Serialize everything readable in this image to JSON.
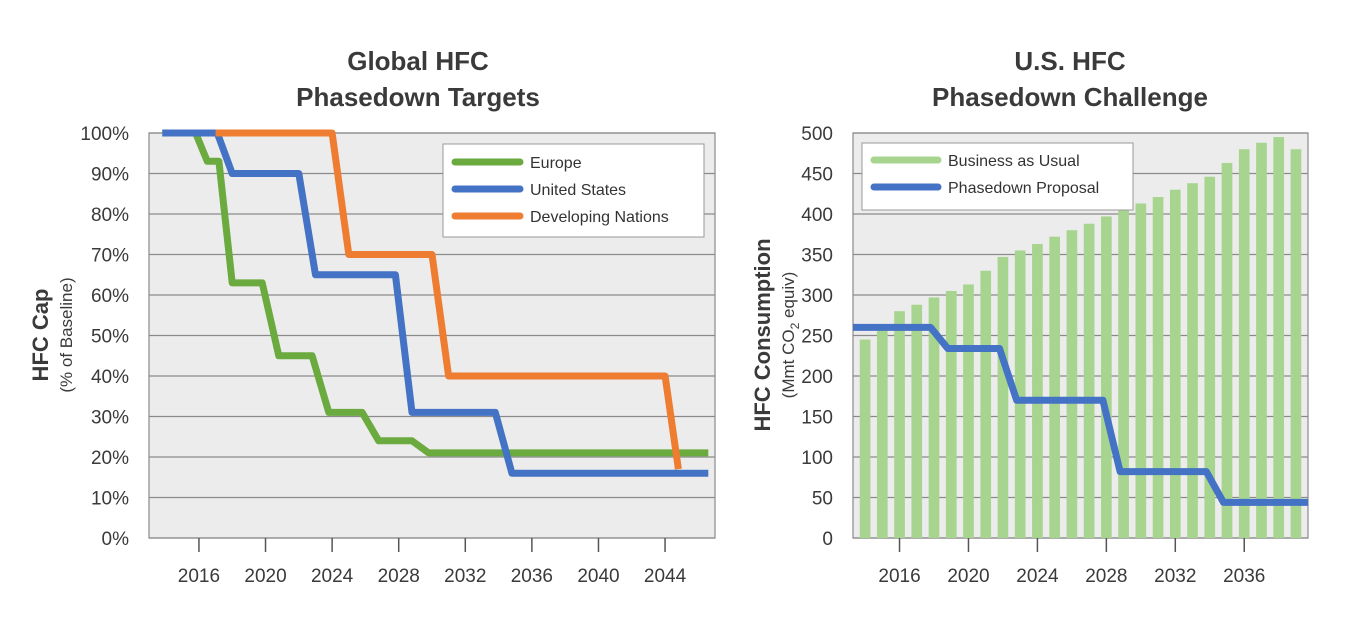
{
  "colors": {
    "europe": "#6aaa3f",
    "united_states": "#4472c4",
    "developing": "#ee7d31",
    "bau": "#a7d58f",
    "proposal": "#4472c4",
    "plot_bg": "#ececec",
    "grid": "#8a8a8a"
  },
  "chart_data": [
    {
      "type": "line",
      "title_line1": "Global HFC",
      "title_line2": "Phasedown Targets",
      "ylabel": "HFC Cap",
      "ylabel_sub": "(% of Baseline)",
      "xlabel": "",
      "xlim": [
        2013,
        2047
      ],
      "ylim": [
        0,
        100
      ],
      "xticks": [
        "2016",
        "2020",
        "2024",
        "2028",
        "2032",
        "2036",
        "2040",
        "2044"
      ],
      "xtick_values": [
        2016,
        2020,
        2024,
        2028,
        2032,
        2036,
        2040,
        2044
      ],
      "yticks": [
        "0%",
        "10%",
        "20%",
        "30%",
        "40%",
        "50%",
        "60%",
        "70%",
        "80%",
        "90%",
        "100%"
      ],
      "ytick_values": [
        0,
        10,
        20,
        30,
        40,
        50,
        60,
        70,
        80,
        90,
        100
      ],
      "grid": true,
      "legend": "top-right",
      "series": [
        {
          "name": "Europe",
          "x": [
            2013.8,
            2015.8,
            2016.5,
            2017.2,
            2018,
            2019.8,
            2020.8,
            2022.8,
            2023.8,
            2025.8,
            2026.8,
            2028.8,
            2029.8,
            2046.6
          ],
          "y": [
            100,
            100,
            93,
            93,
            63,
            63,
            45,
            45,
            31,
            31,
            24,
            24,
            21,
            21
          ]
        },
        {
          "name": "United States",
          "x": [
            2013.8,
            2017.1,
            2018,
            2022,
            2023,
            2027.8,
            2028.8,
            2033.8,
            2034.8,
            2046.6
          ],
          "y": [
            100,
            100,
            90,
            90,
            65,
            65,
            31,
            31,
            16,
            16
          ]
        },
        {
          "name": "Developing Nations",
          "x": [
            2017,
            2024,
            2025,
            2030,
            2031,
            2044,
            2044.8
          ],
          "y": [
            100,
            100,
            70,
            70,
            40,
            40,
            17
          ]
        }
      ]
    },
    {
      "type": "bar",
      "title_line1": "U.S. HFC",
      "title_line2": "Phasedown Challenge",
      "ylabel": "HFC Consumption",
      "ylabel_sub_prefix": "(Mmt CO",
      "ylabel_sub_subscript": "2",
      "ylabel_sub_suffix": " equiv)",
      "xlabel": "",
      "xlim": [
        2013.3,
        2039.7
      ],
      "ylim": [
        0,
        500
      ],
      "xticks": [
        "2016",
        "2020",
        "2024",
        "2028",
        "2032",
        "2036"
      ],
      "xtick_values": [
        2016,
        2020,
        2024,
        2028,
        2032,
        2036
      ],
      "yticks": [
        "0",
        "50",
        "100",
        "150",
        "200",
        "250",
        "300",
        "350",
        "400",
        "450",
        "500"
      ],
      "ytick_values": [
        0,
        50,
        100,
        150,
        200,
        250,
        300,
        350,
        400,
        450,
        500
      ],
      "grid": true,
      "legend": "top-left",
      "series": [
        {
          "name": "Business as Usual",
          "type": "bar",
          "x": [
            2014,
            2015,
            2016,
            2017,
            2018,
            2019,
            2020,
            2021,
            2022,
            2023,
            2024,
            2025,
            2026,
            2027,
            2028,
            2029,
            2030,
            2031,
            2032,
            2033,
            2034,
            2035,
            2036,
            2037,
            2038,
            2039
          ],
          "values": [
            245,
            258,
            280,
            288,
            297,
            305,
            313,
            330,
            347,
            355,
            363,
            372,
            380,
            388,
            397,
            405,
            413,
            421,
            430,
            438,
            446,
            463,
            480,
            488,
            495,
            480
          ]
        },
        {
          "name": "Phasedown Proposal",
          "type": "line",
          "x": [
            2013.3,
            2017.8,
            2018.8,
            2021.8,
            2022.8,
            2027.8,
            2028.8,
            2033.8,
            2034.8,
            2039.7
          ],
          "y": [
            260,
            260,
            234,
            234,
            170,
            170,
            82,
            82,
            44,
            44
          ]
        }
      ]
    }
  ]
}
